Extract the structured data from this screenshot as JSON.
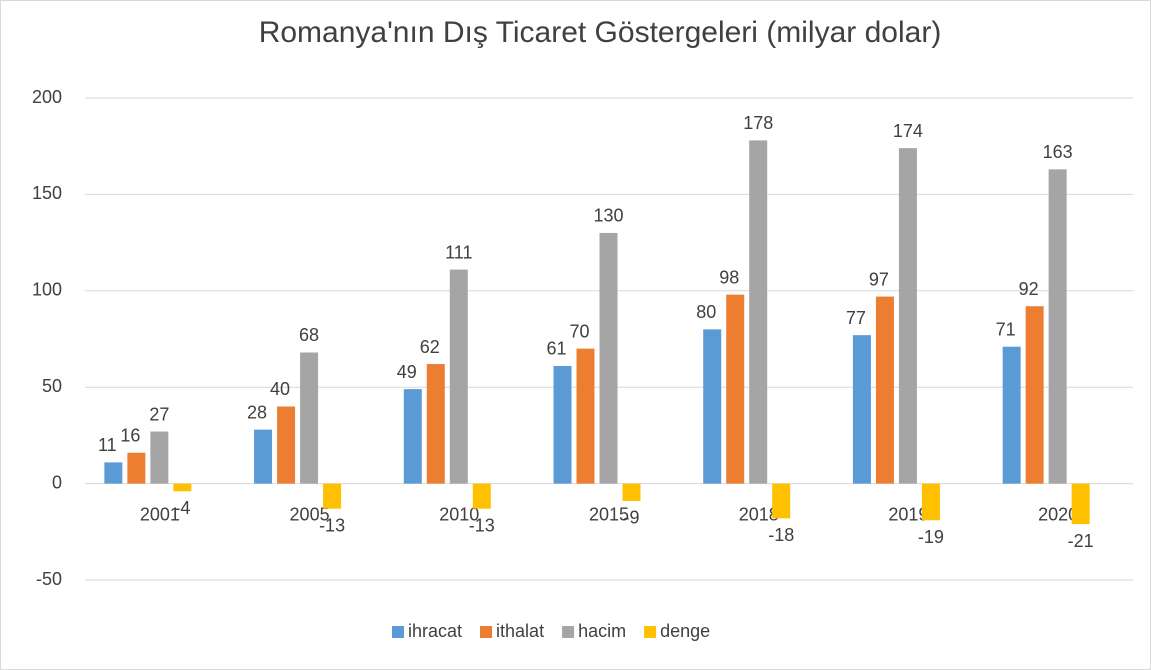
{
  "chart_data": {
    "type": "bar",
    "title": "Romanya'nın Dış Ticaret Göstergeleri (milyar dolar)",
    "categories": [
      "2001",
      "2005",
      "2010",
      "2015",
      "2018",
      "2019",
      "2020"
    ],
    "series": [
      {
        "name": "ihracat",
        "color": "#5b9bd5",
        "values": [
          11,
          28,
          49,
          61,
          80,
          77,
          71
        ]
      },
      {
        "name": "ithalat",
        "color": "#ed7d31",
        "values": [
          16,
          40,
          62,
          70,
          98,
          97,
          92
        ]
      },
      {
        "name": "hacim",
        "color": "#a5a5a5",
        "values": [
          27,
          68,
          111,
          130,
          178,
          174,
          163
        ]
      },
      {
        "name": "denge",
        "color": "#ffc000",
        "values": [
          -4,
          -13,
          -13,
          -9,
          -18,
          -19,
          -21
        ]
      }
    ],
    "ylim": [
      -50,
      200
    ],
    "yticks": [
      -50,
      0,
      50,
      100,
      150,
      200
    ],
    "grid": true,
    "legend": "bottom"
  }
}
